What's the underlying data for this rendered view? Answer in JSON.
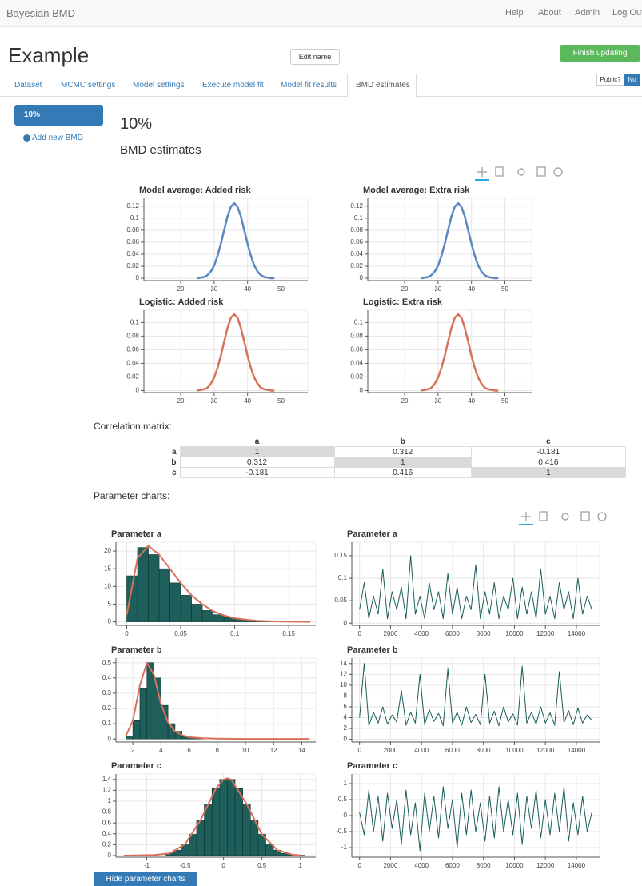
{
  "navbar": {
    "brand": "Bayesian BMD",
    "links": [
      "Help",
      "About",
      "Admin",
      "Log Out"
    ]
  },
  "header": {
    "title": "Example",
    "edit_button": "Edit name",
    "finish_button": "Finish updating",
    "public_label": "Public?",
    "public_value": "No"
  },
  "tabs": {
    "items": [
      "Dataset",
      "MCMC settings",
      "Model settings",
      "Execute model fit",
      "Model fit results",
      "BMD estimates"
    ],
    "active": 5
  },
  "sidebar": {
    "items": [
      "10%"
    ],
    "add_label": "Add new BMD"
  },
  "main": {
    "heading": "10%",
    "subheading": "BMD estimates"
  },
  "correlation": {
    "label": "Correlation matrix:",
    "columns": [
      "a",
      "b",
      "c"
    ],
    "rows": [
      {
        "name": "a",
        "values": [
          1,
          0.312,
          -0.181
        ]
      },
      {
        "name": "b",
        "values": [
          0.312,
          1,
          0.416
        ]
      },
      {
        "name": "c",
        "values": [
          -0.181,
          0.416,
          1
        ]
      }
    ]
  },
  "parameter_label": "Parameter charts:",
  "hide_button": "Hide parameter charts",
  "chart_data": [
    {
      "type": "line",
      "title": "Model average: Added risk",
      "color": "#5b87c2",
      "x": [
        25,
        26,
        27,
        28,
        29,
        30,
        31,
        32,
        33,
        34,
        35,
        36,
        37,
        38,
        39,
        40,
        41,
        42,
        43,
        44,
        45,
        46,
        47,
        48
      ],
      "values": [
        0,
        0.001,
        0.002,
        0.005,
        0.011,
        0.021,
        0.037,
        0.057,
        0.08,
        0.103,
        0.119,
        0.125,
        0.119,
        0.103,
        0.08,
        0.057,
        0.037,
        0.021,
        0.011,
        0.005,
        0.002,
        0.001,
        0,
        0
      ],
      "xlim": [
        9,
        58
      ],
      "ylim": [
        -0.004,
        0.133
      ],
      "xticks": [
        20,
        30,
        40,
        50
      ],
      "yticks": [
        0,
        0.02,
        0.04,
        0.06,
        0.08,
        0.1,
        0.12
      ],
      "grid": true
    },
    {
      "type": "line",
      "title": "Model average: Extra risk",
      "color": "#5b87c2",
      "x": [
        25,
        26,
        27,
        28,
        29,
        30,
        31,
        32,
        33,
        34,
        35,
        36,
        37,
        38,
        39,
        40,
        41,
        42,
        43,
        44,
        45,
        46,
        47,
        48
      ],
      "values": [
        0,
        0.001,
        0.002,
        0.005,
        0.011,
        0.021,
        0.037,
        0.057,
        0.08,
        0.103,
        0.119,
        0.125,
        0.119,
        0.103,
        0.08,
        0.057,
        0.037,
        0.021,
        0.011,
        0.005,
        0.002,
        0.001,
        0,
        0
      ],
      "xlim": [
        9,
        58
      ],
      "ylim": [
        -0.004,
        0.133
      ],
      "xticks": [
        20,
        30,
        40,
        50
      ],
      "yticks": [
        0,
        0.02,
        0.04,
        0.06,
        0.08,
        0.1,
        0.12
      ],
      "grid": true
    },
    {
      "type": "line",
      "title": "Logistic: Added risk",
      "color": "#d9705a",
      "x": [
        25,
        26,
        27,
        28,
        29,
        30,
        31,
        32,
        33,
        34,
        35,
        36,
        37,
        38,
        39,
        40,
        41,
        42,
        43,
        44,
        45,
        46,
        47,
        48
      ],
      "values": [
        0,
        0.001,
        0.002,
        0.004,
        0.01,
        0.019,
        0.033,
        0.051,
        0.072,
        0.092,
        0.107,
        0.112,
        0.107,
        0.092,
        0.072,
        0.051,
        0.033,
        0.019,
        0.01,
        0.004,
        0.002,
        0.001,
        0,
        0
      ],
      "xlim": [
        9,
        58
      ],
      "ylim": [
        -0.003,
        0.118
      ],
      "xticks": [
        20,
        30,
        40,
        50
      ],
      "yticks": [
        0,
        0.02,
        0.04,
        0.06,
        0.08,
        0.1
      ],
      "grid": true
    },
    {
      "type": "line",
      "title": "Logistic: Extra risk",
      "color": "#d9705a",
      "x": [
        25,
        26,
        27,
        28,
        29,
        30,
        31,
        32,
        33,
        34,
        35,
        36,
        37,
        38,
        39,
        40,
        41,
        42,
        43,
        44,
        45,
        46,
        47,
        48
      ],
      "values": [
        0,
        0.001,
        0.002,
        0.004,
        0.01,
        0.019,
        0.033,
        0.051,
        0.072,
        0.092,
        0.107,
        0.112,
        0.107,
        0.092,
        0.072,
        0.051,
        0.033,
        0.019,
        0.01,
        0.004,
        0.002,
        0.001,
        0,
        0
      ],
      "xlim": [
        9,
        58
      ],
      "ylim": [
        -0.003,
        0.118
      ],
      "xticks": [
        20,
        30,
        40,
        50
      ],
      "yticks": [
        0,
        0.02,
        0.04,
        0.06,
        0.08,
        0.1
      ],
      "grid": true
    },
    {
      "type": "histogram",
      "title": "Parameter a",
      "color": "#1e5f5b",
      "bins": [
        0,
        0.01,
        0.02,
        0.03,
        0.04,
        0.05,
        0.06,
        0.07,
        0.08,
        0.09,
        0.1,
        0.11,
        0.12,
        0.13,
        0.14,
        0.15,
        0.16,
        0.17
      ],
      "counts": [
        13,
        21,
        19,
        15,
        11,
        7.5,
        5,
        3.2,
        2,
        1.2,
        0.7,
        0.4,
        0.2,
        0.1,
        0.05,
        0.02,
        0
      ],
      "curve": {
        "color": "#d9705a",
        "x": [
          0,
          0.01,
          0.02,
          0.03,
          0.04,
          0.05,
          0.06,
          0.07,
          0.08,
          0.09,
          0.1,
          0.12,
          0.14,
          0.17
        ],
        "values": [
          2,
          18,
          21.5,
          19,
          15,
          11,
          7.5,
          5,
          3,
          1.8,
          1,
          0.3,
          0.1,
          0
        ]
      },
      "xlim": [
        -0.01,
        0.175
      ],
      "ylim": [
        -1,
        22.5
      ],
      "xticks": [
        0,
        0.05,
        0.1,
        0.15
      ],
      "yticks": [
        0,
        5,
        10,
        15,
        20
      ],
      "grid": true
    },
    {
      "type": "line",
      "title": "Parameter a",
      "color": "#1a5e5a",
      "x": [
        0,
        300,
        600,
        900,
        1200,
        1500,
        1800,
        2100,
        2400,
        2700,
        3000,
        3300,
        3600,
        3900,
        4200,
        4500,
        4800,
        5100,
        5400,
        5700,
        6000,
        6300,
        6600,
        6900,
        7200,
        7500,
        7800,
        8100,
        8400,
        8700,
        9000,
        9300,
        9600,
        9900,
        10200,
        10500,
        10800,
        11100,
        11400,
        11700,
        12000,
        12300,
        12600,
        12900,
        13200,
        13500,
        13800,
        14100,
        14400,
        14700,
        15000
      ],
      "values": [
        0.03,
        0.09,
        0.01,
        0.06,
        0.02,
        0.12,
        0.01,
        0.07,
        0.03,
        0.08,
        0.01,
        0.15,
        0.02,
        0.06,
        0.01,
        0.09,
        0.03,
        0.07,
        0.01,
        0.11,
        0.02,
        0.08,
        0.01,
        0.06,
        0.03,
        0.13,
        0.01,
        0.07,
        0.02,
        0.09,
        0.01,
        0.06,
        0.03,
        0.1,
        0.01,
        0.08,
        0.02,
        0.07,
        0.01,
        0.12,
        0.02,
        0.06,
        0.01,
        0.09,
        0.03,
        0.07,
        0.01,
        0.1,
        0.02,
        0.06,
        0.03
      ],
      "xlim": [
        -500,
        15500
      ],
      "ylim": [
        -0.005,
        0.18
      ],
      "xticks": [
        0,
        2000,
        4000,
        6000,
        8000,
        10000,
        12000,
        14000
      ],
      "yticks": [
        0,
        0.05,
        0.1,
        0.15
      ],
      "grid": true
    },
    {
      "type": "histogram",
      "title": "Parameter b",
      "color": "#1e5f5b",
      "bins": [
        1.5,
        2,
        2.5,
        3,
        3.5,
        4,
        4.5,
        5,
        5.5,
        6,
        6.5,
        7
      ],
      "counts": [
        0.02,
        0.12,
        0.33,
        0.5,
        0.4,
        0.22,
        0.1,
        0.05,
        0.02,
        0.01,
        0.005
      ],
      "curve": {
        "color": "#d9705a",
        "x": [
          1.5,
          2,
          2.5,
          3,
          3.5,
          4,
          4.5,
          5,
          5.5,
          6,
          7,
          8,
          10,
          12,
          14.5
        ],
        "values": [
          0.02,
          0.12,
          0.35,
          0.5,
          0.42,
          0.23,
          0.11,
          0.05,
          0.025,
          0.012,
          0.005,
          0.002,
          0,
          0,
          0
        ]
      },
      "xlim": [
        0.8,
        15
      ],
      "ylim": [
        -0.02,
        0.53
      ],
      "xticks": [
        2,
        4,
        6,
        8,
        10,
        12,
        14
      ],
      "yticks": [
        0,
        0.1,
        0.2,
        0.3,
        0.4,
        0.5
      ],
      "grid": true
    },
    {
      "type": "line",
      "title": "Parameter b",
      "color": "#1a5e5a",
      "x": [
        0,
        300,
        600,
        900,
        1200,
        1500,
        1800,
        2100,
        2400,
        2700,
        3000,
        3300,
        3600,
        3900,
        4200,
        4500,
        4800,
        5100,
        5400,
        5700,
        6000,
        6300,
        6600,
        6900,
        7200,
        7500,
        7800,
        8100,
        8400,
        8700,
        9000,
        9300,
        9600,
        9900,
        10200,
        10500,
        10800,
        11100,
        11400,
        11700,
        12000,
        12300,
        12600,
        12900,
        13200,
        13500,
        13800,
        14100,
        14400,
        14700,
        15000
      ],
      "values": [
        4,
        14,
        2.5,
        5,
        3,
        6,
        2.8,
        4.5,
        3.2,
        9,
        2.6,
        5,
        3,
        12,
        2.7,
        5.5,
        3.3,
        4.8,
        2.5,
        13,
        3,
        5,
        2.6,
        6,
        3.1,
        4.6,
        2.7,
        12,
        3,
        5.2,
        2.5,
        6,
        3.2,
        4.7,
        2.6,
        13.5,
        3,
        5,
        2.8,
        6,
        3,
        4.9,
        2.6,
        12.5,
        3.1,
        5.3,
        2.7,
        5.8,
        3,
        4.5,
        3.5
      ],
      "xlim": [
        -500,
        15500
      ],
      "ylim": [
        -0.5,
        15
      ],
      "xticks": [
        0,
        2000,
        4000,
        6000,
        8000,
        10000,
        12000,
        14000
      ],
      "yticks": [
        0,
        2,
        4,
        6,
        8,
        10,
        12,
        14
      ],
      "grid": true
    },
    {
      "type": "histogram",
      "title": "Parameter c",
      "color": "#1e5f5b",
      "bins": [
        -0.75,
        -0.65,
        -0.55,
        -0.45,
        -0.35,
        -0.25,
        -0.15,
        -0.05,
        0.05,
        0.15,
        0.25,
        0.35,
        0.45,
        0.55,
        0.65,
        0.75,
        0.85,
        0.95,
        1.05
      ],
      "counts": [
        0.04,
        0.1,
        0.21,
        0.39,
        0.65,
        0.95,
        1.23,
        1.4,
        1.4,
        1.23,
        0.95,
        0.65,
        0.39,
        0.21,
        0.1,
        0.04,
        0.015,
        0.005
      ],
      "curve": {
        "color": "#d9705a",
        "x": [
          -1.3,
          -0.9,
          -0.7,
          -0.5,
          -0.3,
          -0.1,
          0,
          0.05,
          0.1,
          0.3,
          0.5,
          0.7,
          0.9,
          1
        ],
        "values": [
          0,
          0.01,
          0.04,
          0.21,
          0.65,
          1.23,
          1.4,
          1.42,
          1.4,
          0.95,
          0.39,
          0.1,
          0.015,
          0.005
        ]
      },
      "xlim": [
        -1.4,
        1.2
      ],
      "ylim": [
        -0.03,
        1.5
      ],
      "xticks": [
        -1,
        -0.5,
        0,
        0.5,
        1
      ],
      "yticks": [
        0,
        0.2,
        0.4,
        0.6,
        0.8,
        1,
        1.2,
        1.4
      ],
      "grid": true
    },
    {
      "type": "line",
      "title": "Parameter c",
      "color": "#1a5e5a",
      "x": [
        0,
        300,
        600,
        900,
        1200,
        1500,
        1800,
        2100,
        2400,
        2700,
        3000,
        3300,
        3600,
        3900,
        4200,
        4500,
        4800,
        5100,
        5400,
        5700,
        6000,
        6300,
        6600,
        6900,
        7200,
        7500,
        7800,
        8100,
        8400,
        8700,
        9000,
        9300,
        9600,
        9900,
        10200,
        10500,
        10800,
        11100,
        11400,
        11700,
        12000,
        12300,
        12600,
        12900,
        13200,
        13500,
        13800,
        14100,
        14400,
        14700,
        15000
      ],
      "values": [
        0.1,
        -0.6,
        0.8,
        -0.5,
        0.6,
        -0.8,
        0.7,
        -0.4,
        0.5,
        -0.9,
        0.8,
        -0.6,
        0.4,
        -1.1,
        0.7,
        -0.5,
        0.6,
        -0.7,
        0.9,
        -0.4,
        0.5,
        -1,
        0.7,
        -0.6,
        0.8,
        -0.5,
        0.4,
        -0.8,
        0.6,
        -0.7,
        0.9,
        -0.5,
        0.5,
        -0.6,
        0.7,
        -0.9,
        0.6,
        -0.4,
        0.8,
        -0.7,
        0.5,
        -0.6,
        0.7,
        -0.5,
        0.9,
        -0.8,
        0.4,
        -0.6,
        0.6,
        -0.5,
        0.1
      ],
      "xlim": [
        -500,
        15500
      ],
      "ylim": [
        -1.3,
        1.3
      ],
      "xticks": [
        0,
        2000,
        4000,
        6000,
        8000,
        10000,
        12000,
        14000
      ],
      "yticks": [
        -1,
        -0.5,
        0,
        0.5,
        1
      ],
      "grid": true
    }
  ]
}
